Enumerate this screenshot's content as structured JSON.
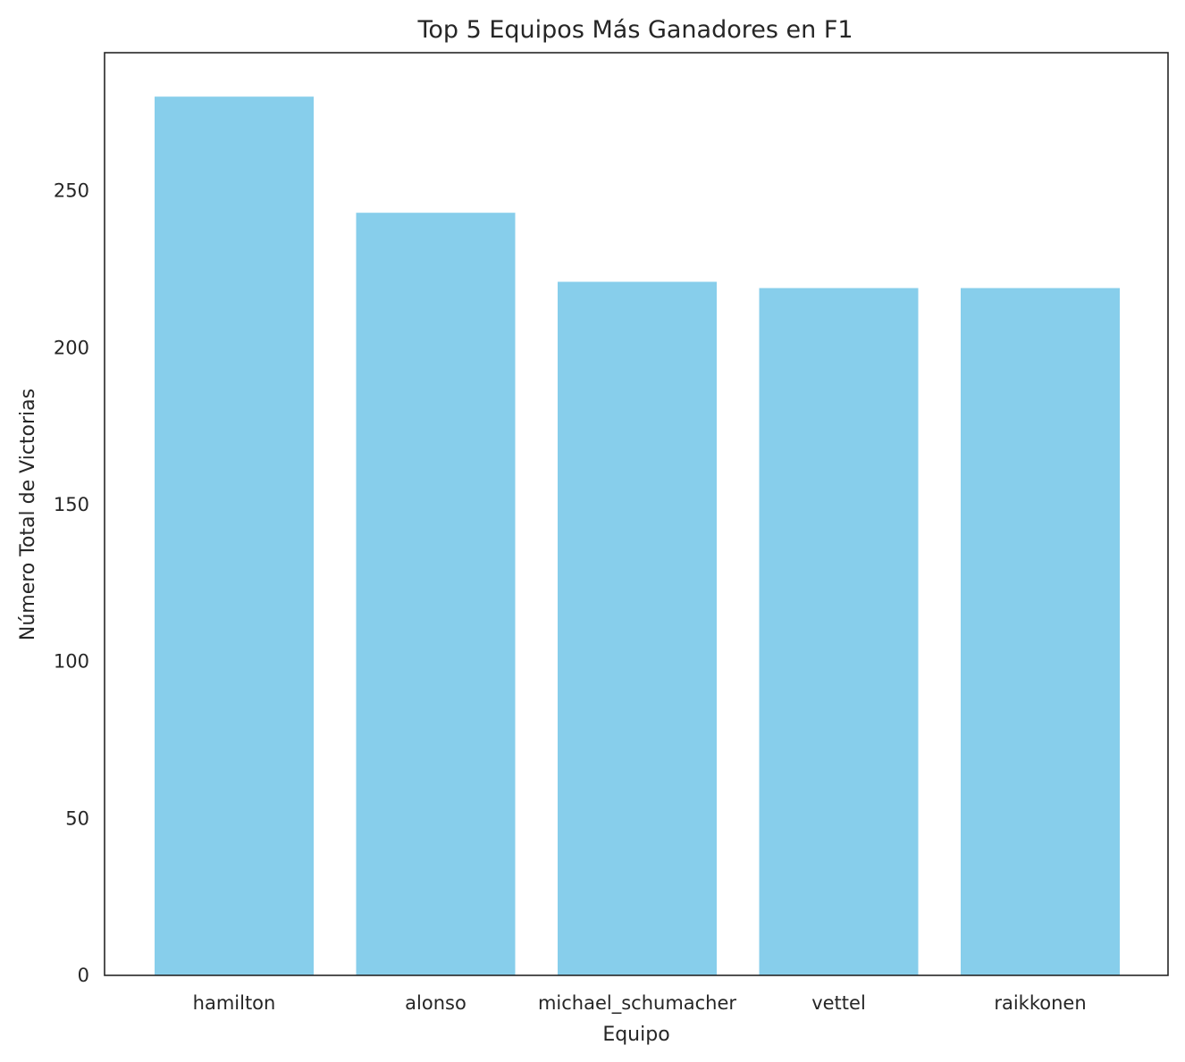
{
  "chart_data": {
    "type": "bar",
    "title": "Top 5 Equipos Más Ganadores en F1",
    "xlabel": "Equipo",
    "ylabel": "Número Total de Victorias",
    "categories": [
      "hamilton",
      "alonso",
      "michael_schumacher",
      "vettel",
      "raikkonen"
    ],
    "values": [
      280,
      243,
      221,
      219,
      219
    ],
    "ylim": [
      0,
      294
    ],
    "yticks": [
      0,
      50,
      100,
      150,
      200,
      250
    ],
    "grid": false,
    "bar_color": "#87CEEB",
    "frame_color": "#262626"
  }
}
